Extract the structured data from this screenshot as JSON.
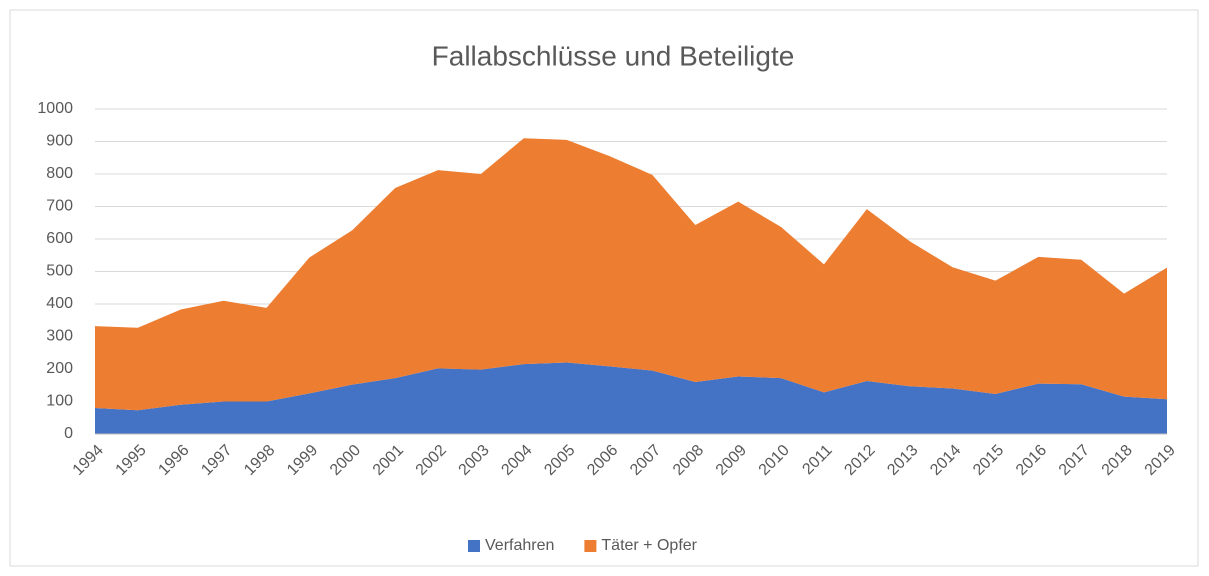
{
  "chart_data": {
    "type": "stacked_area",
    "title": "Fallabschlüsse und Beteiligte",
    "categories": [
      "1994",
      "1995",
      "1996",
      "1997",
      "1998",
      "1999",
      "2000",
      "2001",
      "2002",
      "2003",
      "2004",
      "2005",
      "2006",
      "2007",
      "2008",
      "2009",
      "2010",
      "2011",
      "2012",
      "2013",
      "2014",
      "2015",
      "2016",
      "2017",
      "2018",
      "2019"
    ],
    "series": [
      {
        "name": "Verfahren",
        "color": "#4472c4",
        "values": [
          80,
          73,
          90,
          100,
          100,
          125,
          152,
          172,
          202,
          198,
          215,
          220,
          208,
          195,
          160,
          177,
          172,
          128,
          163,
          147,
          140,
          123,
          155,
          153,
          115,
          107
        ]
      },
      {
        "name": "Täter + Opfer",
        "color": "#ed7d31",
        "values": [
          252,
          254,
          293,
          310,
          288,
          418,
          475,
          585,
          610,
          602,
          695,
          685,
          647,
          602,
          483,
          538,
          465,
          394,
          529,
          446,
          373,
          349,
          390,
          383,
          317,
          405
        ]
      }
    ],
    "ylim": [
      0,
      1000
    ],
    "yticks": [
      0,
      100,
      200,
      300,
      400,
      500,
      600,
      700,
      800,
      900,
      1000
    ],
    "grid": true,
    "legend": "bottom"
  }
}
